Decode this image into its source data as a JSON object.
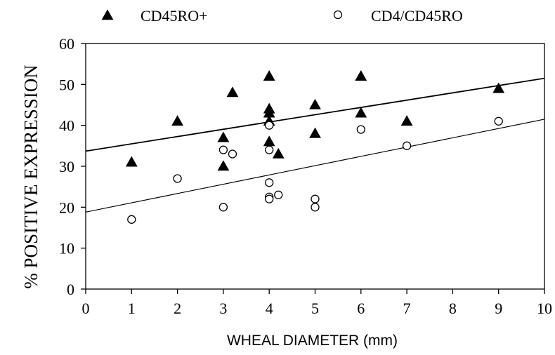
{
  "chart_data": {
    "type": "scatter",
    "xlabel": "WHEAL DIAMETER (mm)",
    "ylabel": "% POSITIVE EXPRESSION",
    "xlim": [
      0,
      10
    ],
    "ylim": [
      0,
      60
    ],
    "xticks": [
      0,
      1,
      2,
      3,
      4,
      5,
      6,
      7,
      8,
      9,
      10
    ],
    "yticks": [
      0,
      10,
      20,
      30,
      40,
      50,
      60
    ],
    "grid": false,
    "legend_position": "top",
    "series": [
      {
        "name": "CD45RO+",
        "marker": "filled-triangle",
        "color": "#000000",
        "points": [
          [
            1,
            31
          ],
          [
            2,
            41
          ],
          [
            3,
            37
          ],
          [
            3,
            30
          ],
          [
            3.2,
            48
          ],
          [
            4,
            52
          ],
          [
            4,
            44
          ],
          [
            4,
            43
          ],
          [
            4,
            41
          ],
          [
            4,
            36
          ],
          [
            4.2,
            33
          ],
          [
            5,
            45
          ],
          [
            5,
            38
          ],
          [
            6,
            52
          ],
          [
            6,
            43
          ],
          [
            7,
            41
          ],
          [
            9,
            49
          ]
        ],
        "trendline": [
          [
            0,
            33.7
          ],
          [
            10,
            51.5
          ]
        ]
      },
      {
        "name": "CD4/CD45RO",
        "marker": "open-circle",
        "color": "#000000",
        "points": [
          [
            1,
            17
          ],
          [
            2,
            27
          ],
          [
            3,
            34
          ],
          [
            3,
            20
          ],
          [
            3.2,
            33
          ],
          [
            4,
            40
          ],
          [
            4,
            34
          ],
          [
            4,
            26
          ],
          [
            4,
            22.5
          ],
          [
            4,
            22
          ],
          [
            4.2,
            23
          ],
          [
            5,
            22
          ],
          [
            5,
            20
          ],
          [
            6,
            39
          ],
          [
            7,
            35
          ],
          [
            9,
            41
          ]
        ],
        "trendline": [
          [
            0,
            18.8
          ],
          [
            10,
            41.5
          ]
        ]
      }
    ]
  }
}
